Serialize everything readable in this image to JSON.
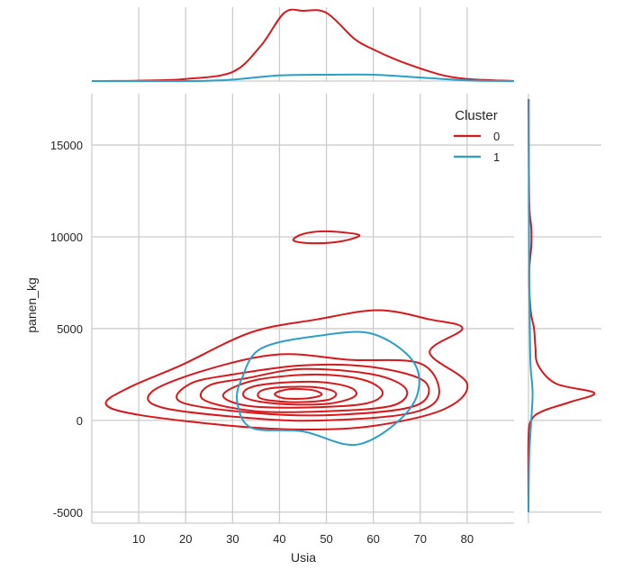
{
  "chart_data": {
    "type": "kde_jointplot",
    "xlabel": "Usia",
    "ylabel": "panen_kg",
    "xlim": [
      0,
      90
    ],
    "ylim": [
      -5600,
      17800
    ],
    "x_ticks": [
      10,
      20,
      30,
      40,
      50,
      60,
      70,
      80
    ],
    "y_ticks": [
      -5000,
      0,
      5000,
      10000,
      15000
    ],
    "grid": true,
    "legend": {
      "title": "Cluster",
      "position": "top-right"
    },
    "series": [
      {
        "name": "0",
        "color": "#d7191c",
        "contours": [
          {
            "level": 1,
            "points": [
              [
                19,
                3000
              ],
              [
                34,
                4800
              ],
              [
                48,
                5500
              ],
              [
                61,
                6000
              ],
              [
                72,
                5500
              ],
              [
                79,
                5000
              ],
              [
                72,
                3700
              ],
              [
                80,
                2000
              ],
              [
                75,
                600
              ],
              [
                60,
                -300
              ],
              [
                45,
                -500
              ],
              [
                30,
                -300
              ],
              [
                10,
                300
              ],
              [
                3,
                900
              ],
              [
                8,
                1800
              ]
            ]
          },
          {
            "level": 2,
            "points": [
              [
                50,
                10300
              ],
              [
                57,
                10100
              ],
              [
                53,
                9750
              ],
              [
                47,
                9650
              ],
              [
                43,
                9800
              ],
              [
                45,
                10150
              ]
            ]
          },
          {
            "level": 3,
            "points": [
              [
                25,
                2800
              ],
              [
                40,
                3600
              ],
              [
                55,
                3300
              ],
              [
                70,
                3100
              ],
              [
                74,
                1400
              ],
              [
                68,
                400
              ],
              [
                50,
                0
              ],
              [
                35,
                100
              ],
              [
                15,
                700
              ],
              [
                13,
                1600
              ]
            ]
          },
          {
            "level": 4,
            "points": [
              [
                30,
                2500
              ],
              [
                45,
                3000
              ],
              [
                60,
                2900
              ],
              [
                71,
                2100
              ],
              [
                69,
                800
              ],
              [
                52,
                300
              ],
              [
                35,
                400
              ],
              [
                19,
                1000
              ],
              [
                21,
                2000
              ]
            ]
          },
          {
            "level": 5,
            "points": [
              [
                33,
                2300
              ],
              [
                45,
                2800
              ],
              [
                60,
                2500
              ],
              [
                67,
                1700
              ],
              [
                64,
                800
              ],
              [
                50,
                500
              ],
              [
                35,
                500
              ],
              [
                24,
                1100
              ],
              [
                25,
                1900
              ]
            ]
          },
          {
            "level": 6,
            "points": [
              [
                35,
                2200
              ],
              [
                48,
                2500
              ],
              [
                58,
                2200
              ],
              [
                62,
                1500
              ],
              [
                58,
                900
              ],
              [
                45,
                700
              ],
              [
                33,
                800
              ],
              [
                28,
                1400
              ]
            ]
          },
          {
            "level": 7,
            "points": [
              [
                38,
                2000
              ],
              [
                48,
                2100
              ],
              [
                55,
                1800
              ],
              [
                56,
                1300
              ],
              [
                50,
                900
              ],
              [
                40,
                900
              ],
              [
                33,
                1200
              ],
              [
                33,
                1700
              ]
            ]
          },
          {
            "level": 8,
            "points": [
              [
                40,
                1800
              ],
              [
                48,
                1800
              ],
              [
                52,
                1500
              ],
              [
                50,
                1100
              ],
              [
                42,
                1000
              ],
              [
                36,
                1200
              ],
              [
                36,
                1600
              ]
            ]
          },
          {
            "level": 9,
            "points": [
              [
                42,
                1700
              ],
              [
                47,
                1650
              ],
              [
                49,
                1400
              ],
              [
                46,
                1200
              ],
              [
                41,
                1200
              ],
              [
                39,
                1450
              ]
            ]
          }
        ],
        "marginal_x": [
          [
            0,
            0
          ],
          [
            10,
            0.005
          ],
          [
            20,
            0.03
          ],
          [
            30,
            0.13
          ],
          [
            36,
            0.5
          ],
          [
            41,
            0.97
          ],
          [
            45,
            1.0
          ],
          [
            50,
            0.97
          ],
          [
            56,
            0.6
          ],
          [
            60,
            0.45
          ],
          [
            65,
            0.3
          ],
          [
            70,
            0.18
          ],
          [
            75,
            0.08
          ],
          [
            80,
            0.03
          ],
          [
            90,
            0
          ]
        ],
        "marginal_y": [
          [
            17500,
            0
          ],
          [
            12000,
            0.01
          ],
          [
            10500,
            0.04
          ],
          [
            9500,
            0.04
          ],
          [
            8000,
            0.01
          ],
          [
            6000,
            0.03
          ],
          [
            5000,
            0.08
          ],
          [
            4000,
            0.1
          ],
          [
            3000,
            0.14
          ],
          [
            2000,
            0.4
          ],
          [
            1500,
            0.95
          ],
          [
            1000,
            0.6
          ],
          [
            500,
            0.2
          ],
          [
            0,
            0.04
          ],
          [
            -1000,
            0
          ],
          [
            -5000,
            0
          ]
        ]
      },
      {
        "name": "1",
        "color": "#2b9fc9",
        "contours": [
          {
            "level": 1,
            "points": [
              [
                36,
                3900
              ],
              [
                48,
                4600
              ],
              [
                60,
                4700
              ],
              [
                69,
                3000
              ],
              [
                68,
                700
              ],
              [
                57,
                -1300
              ],
              [
                45,
                -600
              ],
              [
                34,
                -400
              ],
              [
                31,
                1000
              ],
              [
                32,
                2300
              ]
            ]
          }
        ],
        "marginal_x": [
          [
            0,
            0
          ],
          [
            20,
            0
          ],
          [
            25,
            0.005
          ],
          [
            30,
            0.02
          ],
          [
            40,
            0.08
          ],
          [
            50,
            0.09
          ],
          [
            60,
            0.09
          ],
          [
            70,
            0.05
          ],
          [
            80,
            0.01
          ],
          [
            90,
            0
          ]
        ],
        "marginal_y": [
          [
            17500,
            0.005
          ],
          [
            12000,
            0.005
          ],
          [
            8000,
            0.01
          ],
          [
            5000,
            0.02
          ],
          [
            3000,
            0.03
          ],
          [
            1500,
            0.06
          ],
          [
            0,
            0.04
          ],
          [
            -2000,
            0.01
          ],
          [
            -5000,
            0
          ]
        ]
      }
    ]
  }
}
